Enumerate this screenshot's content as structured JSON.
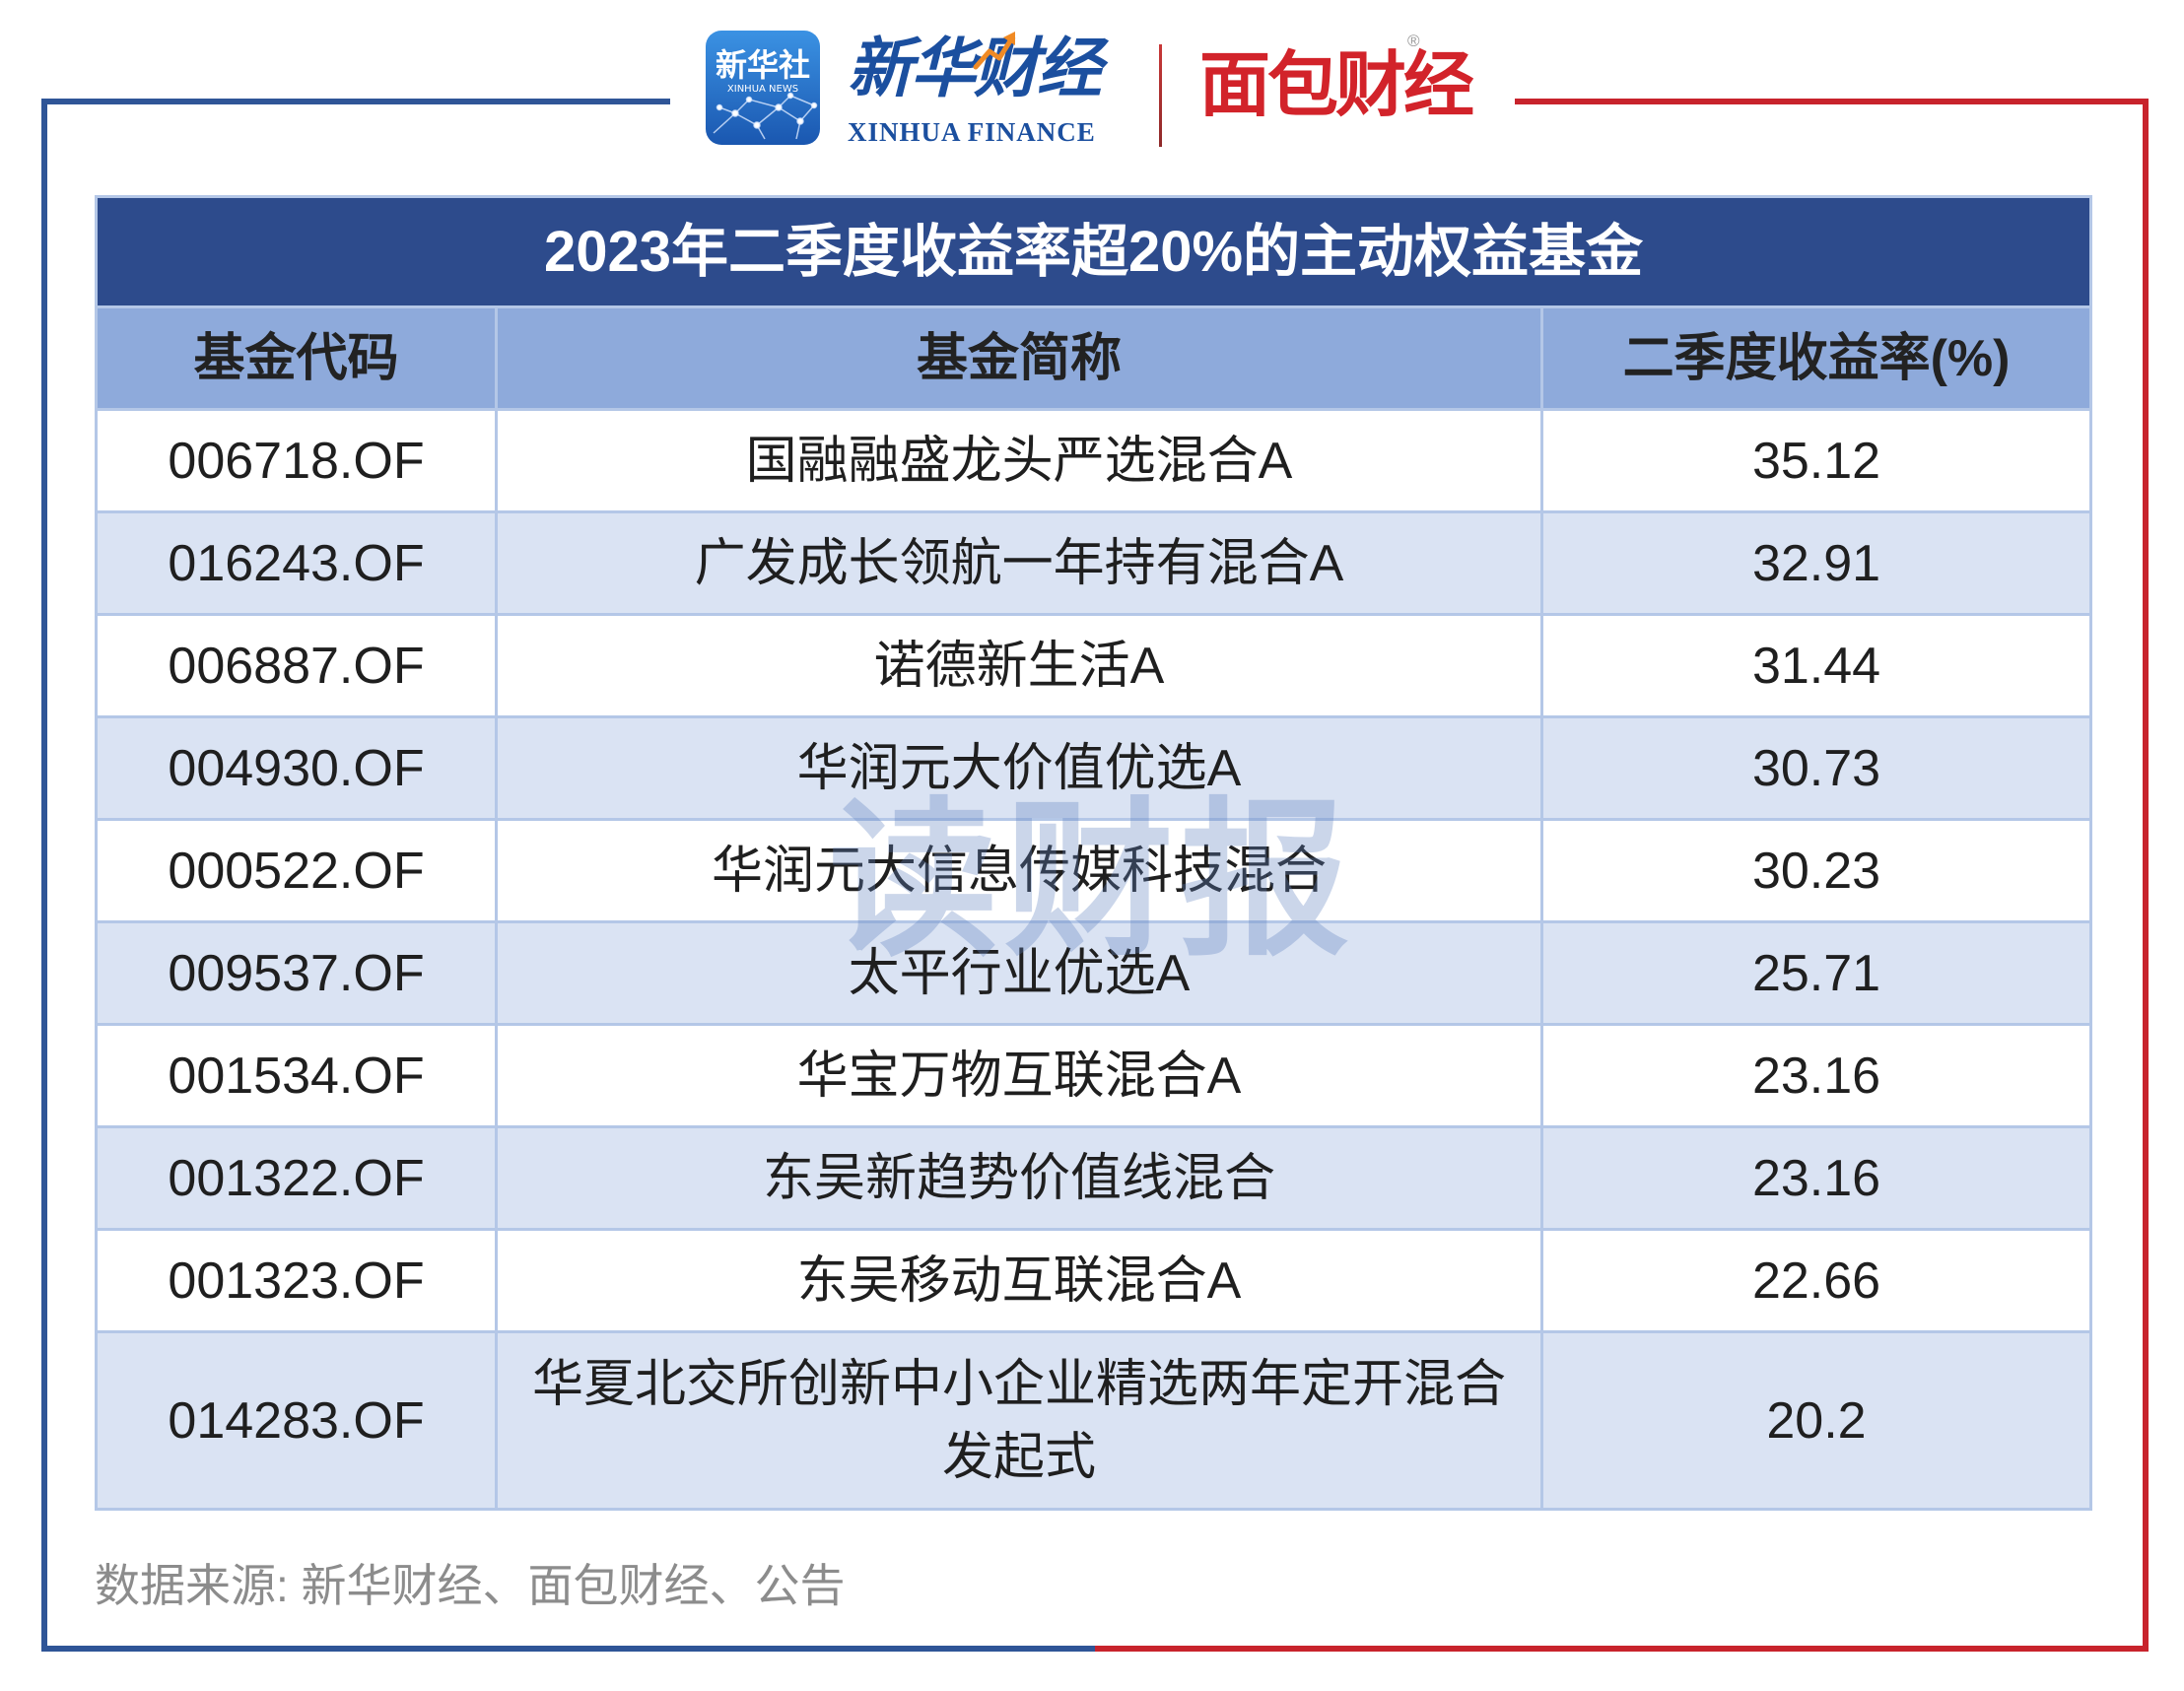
{
  "branding": {
    "xinhua_news": {
      "name_cn": "新华社",
      "name_en": "XINHUA NEWS"
    },
    "xinhua_finance": {
      "name_cn": "新华财经",
      "name_en": "XINHUA FINANCE"
    },
    "mianbao_finance": {
      "name_cn": "面包财经",
      "mark": "®"
    }
  },
  "colors": {
    "frame_blue": "#2f5597",
    "frame_red": "#c8232c",
    "title_bg": "#2d4b8c",
    "header_bg": "#8eaadb",
    "alt_row_bg": "#dae3f3",
    "grid_line": "#b4c7e7",
    "brand_blue": "#1b4f9f",
    "brand_red": "#d2232a"
  },
  "watermark": "读财报",
  "chart_data": {
    "type": "table",
    "title": "2023年二季度收益率超20%的主动权益基金",
    "columns": [
      "基金代码",
      "基金简称",
      "二季度收益率(%)"
    ],
    "rows": [
      {
        "code": "006718.OF",
        "name": "国融融盛龙头严选混合A",
        "return_pct": 35.12
      },
      {
        "code": "016243.OF",
        "name": "广发成长领航一年持有混合A",
        "return_pct": 32.91
      },
      {
        "code": "006887.OF",
        "name": "诺德新生活A",
        "return_pct": 31.44
      },
      {
        "code": "004930.OF",
        "name": "华润元大价值优选A",
        "return_pct": 30.73
      },
      {
        "code": "000522.OF",
        "name": "华润元大信息传媒科技混合",
        "return_pct": 30.23
      },
      {
        "code": "009537.OF",
        "name": "太平行业优选A",
        "return_pct": 25.71
      },
      {
        "code": "001534.OF",
        "name": "华宝万物互联混合A",
        "return_pct": 23.16
      },
      {
        "code": "001322.OF",
        "name": "东吴新趋势价值线混合",
        "return_pct": 23.16
      },
      {
        "code": "001323.OF",
        "name": "东吴移动互联混合A",
        "return_pct": 22.66
      },
      {
        "code": "014283.OF",
        "name": "华夏北交所创新中小企业精选两年定开混合发起式",
        "return_pct": 20.2
      }
    ]
  },
  "source": "数据来源: 新华财经、面包财经、公告"
}
